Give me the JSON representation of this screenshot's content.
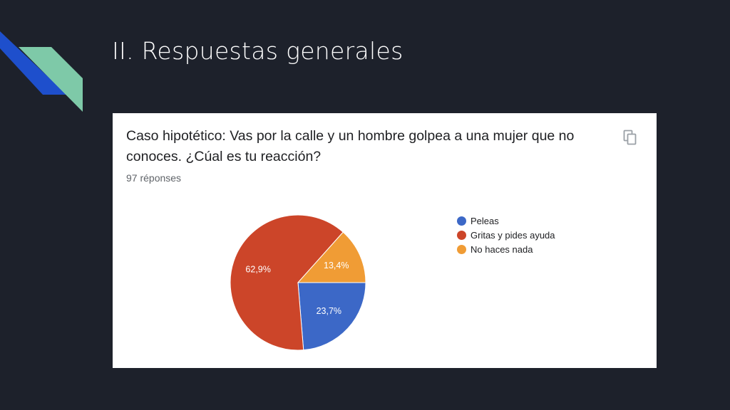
{
  "slide": {
    "title": "II. Respuestas generales"
  },
  "card": {
    "question": "Caso hipotético: Vas por la calle y un hombre golpea a una mujer que no conoces. ¿Cúal es tu reacción?",
    "responses": "97 réponses",
    "copy_icon": "copy-icon"
  },
  "chart_data": {
    "type": "pie",
    "categories": [
      "Peleas",
      "Gritas y pides ayuda",
      "No haces nada"
    ],
    "values": [
      23.7,
      62.9,
      13.4
    ],
    "labels": [
      "23,7%",
      "62,9%",
      "13,4%"
    ],
    "colors": [
      "#3c68c7",
      "#cc4529",
      "#f09c35"
    ],
    "legend": "right"
  }
}
